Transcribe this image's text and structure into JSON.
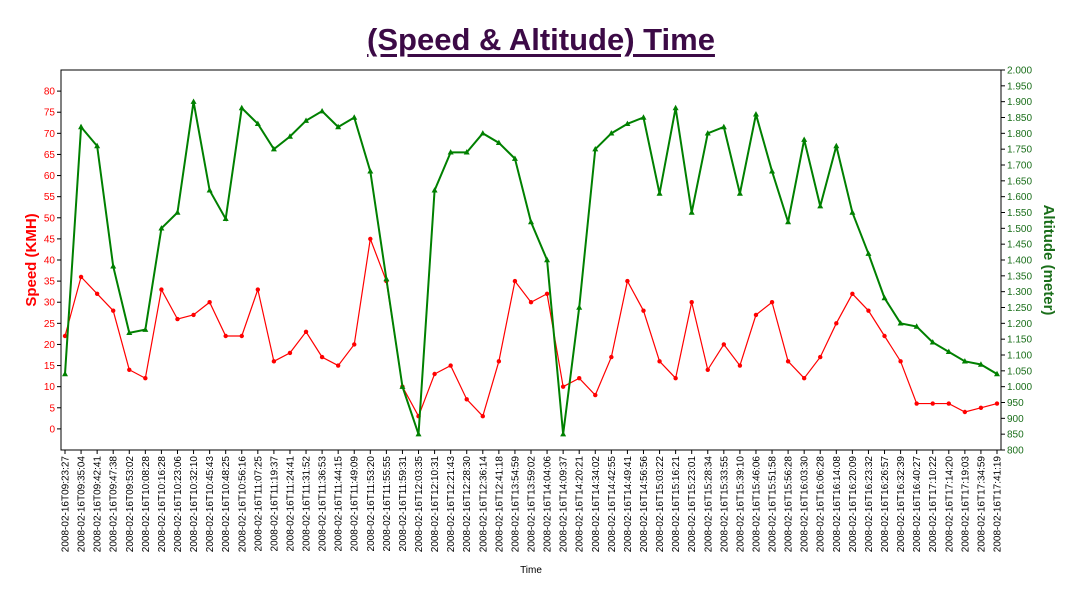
{
  "chart_data": {
    "type": "line",
    "title": "(Speed & Altitude) Time",
    "xlabel": "Time",
    "ylabel": "Speed (KMH)",
    "y2label": "Altitude (meter)",
    "ylim": [
      -5,
      85
    ],
    "y2lim": [
      800,
      2000
    ],
    "yticks": [
      "0",
      "5",
      "10",
      "15",
      "20",
      "25",
      "30",
      "35",
      "40",
      "45",
      "50",
      "55",
      "60",
      "65",
      "70",
      "75",
      "80"
    ],
    "y2ticks": [
      "800",
      "850",
      "900",
      "950",
      "1.000",
      "1.050",
      "1.100",
      "1.150",
      "1.200",
      "1.250",
      "1.300",
      "1.350",
      "1.400",
      "1.450",
      "1.500",
      "1.550",
      "1.600",
      "1.650",
      "1.700",
      "1.750",
      "1.800",
      "1.850",
      "1.900",
      "1.950",
      "2.000"
    ],
    "grid": false,
    "legend": "none",
    "colors": {
      "speed": "#ff0000",
      "altitude": "#008000",
      "title": "#3c0a46"
    },
    "categories": [
      "2008-02-16T09:23:27",
      "2008-02-16T09:35:04",
      "2008-02-16T09:42:41",
      "2008-02-16T09:47:38",
      "2008-02-16T09:53:02",
      "2008-02-16T10:08:28",
      "2008-02-16T10:16:28",
      "2008-02-16T10:23:06",
      "2008-02-16T10:32:10",
      "2008-02-16T10:45:43",
      "2008-02-16T10:48:25",
      "2008-02-16T10:56:16",
      "2008-02-16T11:07:25",
      "2008-02-16T11:19:37",
      "2008-02-16T11:24:41",
      "2008-02-16T11:31:52",
      "2008-02-16T11:36:53",
      "2008-02-16T11:44:15",
      "2008-02-16T11:49:09",
      "2008-02-16T11:53:20",
      "2008-02-16T11:55:55",
      "2008-02-16T11:59:31",
      "2008-02-16T12:03:35",
      "2008-02-16T12:10:31",
      "2008-02-16T12:21:43",
      "2008-02-16T12:28:30",
      "2008-02-16T12:36:14",
      "2008-02-16T12:41:18",
      "2008-02-16T13:54:59",
      "2008-02-16T13:59:02",
      "2008-02-16T14:04:06",
      "2008-02-16T14:09:37",
      "2008-02-16T14:20:21",
      "2008-02-16T14:34:02",
      "2008-02-16T14:42:55",
      "2008-02-16T14:49:41",
      "2008-02-16T14:56:56",
      "2008-02-16T15:03:22",
      "2008-02-16T15:16:21",
      "2008-02-16T15:23:01",
      "2008-02-16T15:28:34",
      "2008-02-16T15:33:55",
      "2008-02-16T15:39:10",
      "2008-02-16T15:46:06",
      "2008-02-16T15:51:58",
      "2008-02-16T15:56:28",
      "2008-02-16T16:03:30",
      "2008-02-16T16:06:28",
      "2008-02-16T16:14:08",
      "2008-02-16T16:20:09",
      "2008-02-16T16:23:32",
      "2008-02-16T16:26:57",
      "2008-02-16T16:32:39",
      "2008-02-16T16:40:27",
      "2008-02-16T17:10:22",
      "2008-02-16T17:14:20",
      "2008-02-16T17:19:03",
      "2008-02-16T17:34:59",
      "2008-02-16T17:41:19"
    ],
    "series": [
      {
        "name": "Speed (KMH)",
        "axis": "left",
        "values": [
          22,
          36,
          32,
          28,
          14,
          12,
          33,
          26,
          27,
          30,
          22,
          22,
          33,
          16,
          18,
          23,
          17,
          15,
          20,
          45,
          35,
          10,
          3,
          13,
          15,
          7,
          3,
          16,
          35,
          30,
          32,
          10,
          12,
          8,
          17,
          35,
          28,
          16,
          12,
          30,
          14,
          20,
          15,
          27,
          30,
          16,
          12,
          17,
          25,
          32,
          28,
          22,
          16,
          6,
          6,
          6,
          4,
          5,
          6
        ]
      },
      {
        "name": "Altitude (meter)",
        "axis": "right",
        "values": [
          1040,
          1820,
          1760,
          1380,
          1170,
          1180,
          1500,
          1550,
          1900,
          1620,
          1530,
          1880,
          1830,
          1750,
          1790,
          1840,
          1870,
          1820,
          1850,
          1680,
          1340,
          1000,
          850,
          1620,
          1740,
          1740,
          1800,
          1770,
          1720,
          1520,
          1400,
          850,
          1250,
          1750,
          1800,
          1830,
          1850,
          1610,
          1880,
          1550,
          1800,
          1820,
          1610,
          1860,
          1680,
          1520,
          1780,
          1570,
          1760,
          1550,
          1420,
          1280,
          1200,
          1190,
          1140,
          1110,
          1080,
          1070,
          1040
        ]
      }
    ]
  }
}
